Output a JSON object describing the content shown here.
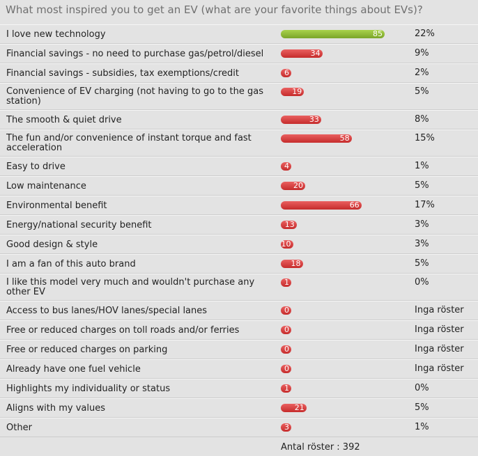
{
  "title": "What most inspired you to get an EV (what are your favorite things about EVs)?",
  "total_label": "Antal röster : 392",
  "colors": {
    "top_bar": "#8dba36",
    "bar": "#d63b3b",
    "background": "#e3e3e3"
  },
  "chart_data": {
    "type": "bar",
    "orientation": "horizontal",
    "title": "What most inspired you to get an EV (what are your favorite things about EVs)?",
    "categories": [
      "I love new technology",
      "Financial savings - no need to purchase gas/petrol/diesel",
      "Financial savings - subsidies, tax exemptions/credit",
      "Convenience of EV charging (not having to go to the gas station)",
      "The smooth & quiet drive",
      "The fun and/or convenience of instant torque and fast acceleration",
      "Easy to drive",
      "Low maintenance",
      "Environmental benefit",
      "Energy/national security benefit",
      "Good design & style",
      "I am a fan of this auto brand",
      "I like this model very much and wouldn't purchase any other EV",
      "Access to bus lanes/HOV lanes/special lanes",
      "Free or reduced charges on toll roads and/or ferries",
      "Free or reduced charges on parking",
      "Already have one fuel vehicle",
      "Highlights my individuality or status",
      "Aligns with my values",
      "Other"
    ],
    "values": [
      85,
      34,
      6,
      19,
      33,
      58,
      4,
      20,
      66,
      13,
      10,
      18,
      1,
      0,
      0,
      0,
      0,
      1,
      21,
      3
    ],
    "percent_labels": [
      "22%",
      "9%",
      "2%",
      "5%",
      "8%",
      "15%",
      "1%",
      "5%",
      "17%",
      "3%",
      "3%",
      "5%",
      "0%",
      "Inga röster",
      "Inga röster",
      "Inga röster",
      "Inga röster",
      "0%",
      "5%",
      "1%"
    ],
    "highlight_index": 0
  }
}
